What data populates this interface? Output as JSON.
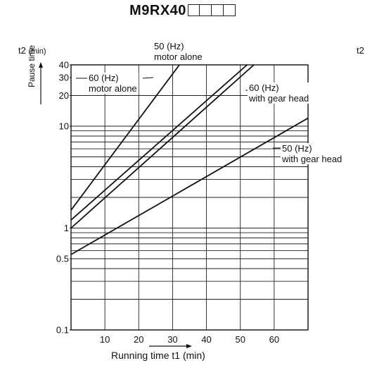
{
  "title": "M9RX40",
  "title_boxes": 4,
  "colors": {
    "line": "#111111",
    "grid": "#222222",
    "background": "#ffffff"
  },
  "chart_data": {
    "type": "line",
    "x_scale": "linear",
    "y_scale": "log",
    "xlim": [
      0,
      70
    ],
    "ylim": [
      0.1,
      40
    ],
    "grid": true,
    "x_ticks": [
      10,
      20,
      30,
      40,
      50,
      60
    ],
    "y_major_labels": [
      {
        "value": 0.1,
        "label": "0.1"
      },
      {
        "value": 0.5,
        "label": "0.5"
      },
      {
        "value": 1,
        "label": "1"
      },
      {
        "value": 10,
        "label": "10"
      },
      {
        "value": 20,
        "label": "20"
      },
      {
        "value": 30,
        "label": "30"
      },
      {
        "value": 40,
        "label": "40"
      }
    ],
    "y_grid": [
      0.2,
      0.3,
      0.4,
      0.5,
      0.6,
      0.7,
      0.8,
      0.9,
      1,
      2,
      3,
      4,
      5,
      6,
      7,
      8,
      9,
      10,
      20
    ],
    "xlabel": "Running time t1 (min)",
    "ylabel_symbol": "t2",
    "ylabel_unit": "(min)",
    "ylabel_vertical": "Pause time",
    "series": [
      {
        "name": "50 (Hz) motor alone",
        "x": [
          0,
          32
        ],
        "y": [
          1.5,
          40
        ]
      },
      {
        "name": "60 (Hz) motor alone",
        "x": [
          0,
          52
        ],
        "y": [
          1.2,
          40
        ]
      },
      {
        "name": "60 (Hz) with gear head",
        "x": [
          0,
          54
        ],
        "y": [
          1.0,
          40
        ]
      },
      {
        "name": "50 (Hz) with gear head",
        "x": [
          0,
          70
        ],
        "y": [
          0.55,
          12
        ]
      }
    ],
    "annotations": [
      {
        "id": "a50m",
        "line1": "50 (Hz)",
        "line2": "motor alone"
      },
      {
        "id": "a60m",
        "line1": "60 (Hz)",
        "line2": "motor alone"
      },
      {
        "id": "a60g",
        "line1": "60 (Hz)",
        "line2": "with gear head"
      },
      {
        "id": "a50g",
        "line1": "50 (Hz)",
        "line2": "with gear head"
      }
    ]
  },
  "clipped_neighbor_label": "t2"
}
